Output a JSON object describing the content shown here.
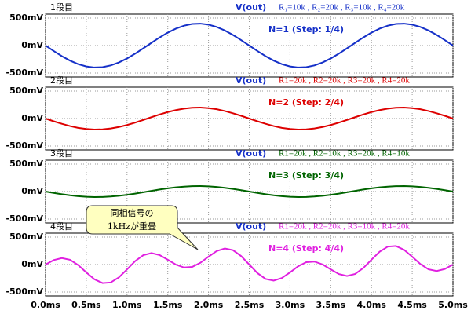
{
  "chart_data": [
    {
      "type": "line",
      "label": "1段目",
      "params": "R₁=10k , R₂=20k , R₃=10k , R₄=20k",
      "step": "N=1  (Step: 1/4)",
      "x": [
        0,
        0.1,
        0.2,
        0.3,
        0.4,
        0.5,
        0.6,
        0.7,
        0.8,
        0.9,
        1,
        1.1,
        1.2,
        1.3,
        1.4,
        1.5,
        1.6,
        1.7,
        1.8,
        1.9,
        2,
        2.1,
        2.2,
        2.3,
        2.4,
        2.5,
        2.6,
        2.7,
        2.8,
        2.9,
        3,
        3.1,
        3.2,
        3.3,
        3.4,
        3.5,
        3.6,
        3.7,
        3.8,
        3.9,
        4,
        4.1,
        4.2,
        4.3,
        4.4,
        4.5,
        4.6,
        4.7,
        4.8,
        4.9,
        5
      ],
      "series": [
        {
          "name": "V(out)",
          "color": "#1530c8",
          "values": [
            0,
            -99,
            -193,
            -274,
            -338,
            -380,
            -399,
            -393,
            -362,
            -308,
            -235,
            -147,
            -50,
            50,
            147,
            235,
            308,
            362,
            393,
            399,
            380,
            338,
            274,
            193,
            99,
            0,
            -99,
            -193,
            -274,
            -338,
            -380,
            -399,
            -393,
            -362,
            -308,
            -235,
            -147,
            -50,
            50,
            147,
            235,
            308,
            362,
            393,
            399,
            380,
            338,
            274,
            193,
            99,
            0
          ]
        }
      ],
      "ylim": [
        -500,
        500
      ],
      "yticks": [
        {
          "value": 500,
          "label": "500mV"
        },
        {
          "value": 0,
          "label": "0mV"
        },
        {
          "value": -500,
          "label": "-500mV"
        }
      ],
      "xlim": [
        0,
        5
      ],
      "grid": true
    },
    {
      "type": "line",
      "label": "2段目",
      "params": "R1=20k , R2=20k , R3=20k , R4=20k",
      "step": "N=2  (Step: 2/4)",
      "x": [
        0,
        0.1,
        0.2,
        0.3,
        0.4,
        0.5,
        0.6,
        0.7,
        0.8,
        0.9,
        1,
        1.1,
        1.2,
        1.3,
        1.4,
        1.5,
        1.6,
        1.7,
        1.8,
        1.9,
        2,
        2.1,
        2.2,
        2.3,
        2.4,
        2.5,
        2.6,
        2.7,
        2.8,
        2.9,
        3,
        3.1,
        3.2,
        3.3,
        3.4,
        3.5,
        3.6,
        3.7,
        3.8,
        3.9,
        4,
        4.1,
        4.2,
        4.3,
        4.4,
        4.5,
        4.6,
        4.7,
        4.8,
        4.9,
        5
      ],
      "series": [
        {
          "name": "V(out)",
          "color": "#dd0000",
          "values": [
            0,
            -50,
            -96,
            -137,
            -169,
            -190,
            -200,
            -196,
            -181,
            -154,
            -118,
            -74,
            -25,
            25,
            74,
            118,
            154,
            181,
            196,
            200,
            190,
            169,
            137,
            96,
            50,
            0,
            -50,
            -96,
            -137,
            -169,
            -190,
            -200,
            -196,
            -181,
            -154,
            -118,
            -74,
            -25,
            25,
            74,
            118,
            154,
            181,
            196,
            200,
            190,
            169,
            137,
            96,
            50,
            0
          ]
        }
      ],
      "ylim": [
        -500,
        500
      ],
      "yticks": [
        {
          "value": 500,
          "label": "500mV"
        },
        {
          "value": 0,
          "label": "0mV"
        },
        {
          "value": -500,
          "label": "-500mV"
        }
      ],
      "xlim": [
        0,
        5
      ],
      "grid": true
    },
    {
      "type": "line",
      "label": "3段目",
      "params": "R1=20k , R2=10k , R3=20k , R4=10k",
      "step": "N=3  (Step: 3/4)",
      "x": [
        0,
        0.1,
        0.2,
        0.3,
        0.4,
        0.5,
        0.6,
        0.7,
        0.8,
        0.9,
        1,
        1.1,
        1.2,
        1.3,
        1.4,
        1.5,
        1.6,
        1.7,
        1.8,
        1.9,
        2,
        2.1,
        2.2,
        2.3,
        2.4,
        2.5,
        2.6,
        2.7,
        2.8,
        2.9,
        3,
        3.1,
        3.2,
        3.3,
        3.4,
        3.5,
        3.6,
        3.7,
        3.8,
        3.9,
        4,
        4.1,
        4.2,
        4.3,
        4.4,
        4.5,
        4.6,
        4.7,
        4.8,
        4.9,
        5
      ],
      "series": [
        {
          "name": "V(out)",
          "color": "#006400",
          "values": [
            0,
            -25,
            -48,
            -68,
            -84,
            -95,
            -100,
            -98,
            -90,
            -77,
            -59,
            -37,
            -13,
            13,
            37,
            59,
            77,
            90,
            98,
            100,
            95,
            84,
            68,
            48,
            25,
            0,
            -25,
            -48,
            -68,
            -84,
            -95,
            -100,
            -98,
            -90,
            -77,
            -59,
            -37,
            -13,
            13,
            37,
            59,
            77,
            90,
            98,
            100,
            95,
            84,
            68,
            48,
            25,
            0
          ]
        }
      ],
      "ylim": [
        -500,
        500
      ],
      "yticks": [
        {
          "value": 500,
          "label": "500mV"
        },
        {
          "value": 0,
          "label": "0mV"
        },
        {
          "value": -500,
          "label": "-500mV"
        }
      ],
      "xlim": [
        0,
        5
      ],
      "grid": true
    },
    {
      "type": "line",
      "label": "4段目",
      "params": "R1=20k , R2=20k , R3=10k , R4=20k",
      "step": "N=4  (Step: 4/4)",
      "callout": [
        "同相信号の",
        "1kHzが重畳"
      ],
      "x": [
        0,
        0.1,
        0.2,
        0.3,
        0.4,
        0.5,
        0.6,
        0.7,
        0.8,
        0.9,
        1,
        1.1,
        1.2,
        1.3,
        1.4,
        1.5,
        1.6,
        1.7,
        1.8,
        1.9,
        2,
        2.1,
        2.2,
        2.3,
        2.4,
        2.5,
        2.6,
        2.7,
        2.8,
        2.9,
        3,
        3.1,
        3.2,
        3.3,
        3.4,
        3.5,
        3.6,
        3.7,
        3.8,
        3.9,
        4,
        4.1,
        4.2,
        4.3,
        4.4,
        4.5,
        4.6,
        4.7,
        4.8,
        4.9,
        5
      ],
      "series": [
        {
          "name": "V(out)",
          "color": "#e020e0",
          "values": [
            0,
            81,
            118,
            87,
            -9,
            -143,
            -268,
            -337,
            -326,
            -234,
            -88,
            63,
            171,
            209,
            173,
            88,
            -2,
            -54,
            -43,
            32,
            143,
            245,
            293,
            262,
            155,
            0,
            -155,
            -262,
            -293,
            -245,
            -143,
            -32,
            43,
            54,
            2,
            -88,
            -173,
            -209,
            -171,
            -63,
            88,
            234,
            326,
            337,
            268,
            143,
            9,
            -87,
            -118,
            -81,
            0
          ]
        }
      ],
      "ylim": [
        -500,
        500
      ],
      "yticks": [
        {
          "value": 500,
          "label": "500mV"
        },
        {
          "value": 0,
          "label": "0mV"
        },
        {
          "value": -500,
          "label": "-500mV"
        }
      ],
      "xlim": [
        0,
        5
      ],
      "xticks": [
        {
          "value": 0,
          "label": "0.0ms"
        },
        {
          "value": 0.5,
          "label": "0.5ms"
        },
        {
          "value": 1,
          "label": "1.0ms"
        },
        {
          "value": 1.5,
          "label": "1.5ms"
        },
        {
          "value": 2,
          "label": "2.0ms"
        },
        {
          "value": 2.5,
          "label": "2.5ms"
        },
        {
          "value": 3,
          "label": "3.0ms"
        },
        {
          "value": 3.5,
          "label": "3.5ms"
        },
        {
          "value": 4,
          "label": "4.0ms"
        },
        {
          "value": 4.5,
          "label": "4.5ms"
        },
        {
          "value": 5,
          "label": "5.0ms"
        }
      ],
      "grid": true
    }
  ]
}
